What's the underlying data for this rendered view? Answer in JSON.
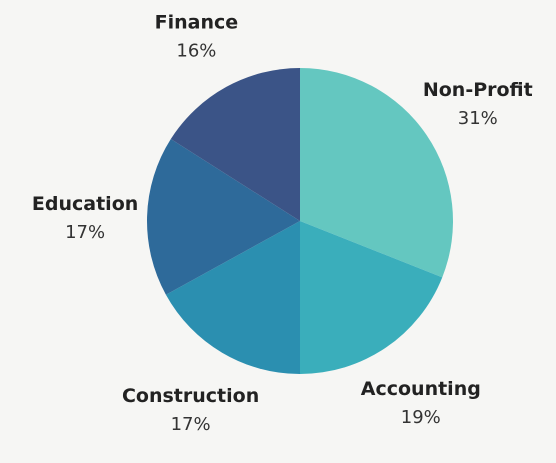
{
  "chart_data": {
    "type": "pie",
    "title": "",
    "slices": [
      {
        "label": "Non-Profit",
        "value": 31,
        "value_label": "31%",
        "color": "#64c7c0"
      },
      {
        "label": "Accounting",
        "value": 19,
        "value_label": "19%",
        "color": "#3aaebb"
      },
      {
        "label": "Construction",
        "value": 17,
        "value_label": "17%",
        "color": "#2b8fb0"
      },
      {
        "label": "Education",
        "value": 17,
        "value_label": "17%",
        "color": "#2e6a9a"
      },
      {
        "label": "Finance",
        "value": 16,
        "value_label": "16%",
        "color": "#3b5487"
      }
    ],
    "start_angle_deg": 0,
    "direction": "clockwise",
    "legend": "none",
    "labels": "outside"
  },
  "background": "#f6f6f4"
}
